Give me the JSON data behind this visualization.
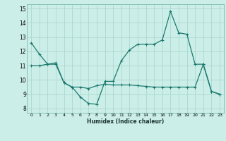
{
  "xlabel": "Humidex (Indice chaleur)",
  "bg_color": "#cceee8",
  "line_color": "#1a7a6e",
  "grid_color": "#aad8d0",
  "x_values": [
    0,
    1,
    2,
    3,
    4,
    5,
    6,
    7,
    8,
    9,
    10,
    11,
    12,
    13,
    14,
    15,
    16,
    17,
    18,
    19,
    20,
    21,
    22,
    23
  ],
  "line1": [
    12.6,
    11.8,
    11.1,
    11.2,
    9.8,
    9.5,
    8.8,
    8.35,
    8.3,
    9.9,
    9.9,
    11.35,
    12.1,
    12.5,
    12.5,
    12.5,
    12.8,
    14.8,
    13.3,
    13.2,
    11.1,
    11.1,
    9.2,
    9.0
  ],
  "line2": [
    11.0,
    11.0,
    11.1,
    11.1,
    9.8,
    9.5,
    9.5,
    9.4,
    9.6,
    9.7,
    9.65,
    9.65,
    9.65,
    9.6,
    9.55,
    9.5,
    9.5,
    9.5,
    9.5,
    9.5,
    9.5,
    11.1,
    9.2,
    9.0
  ],
  "ylim": [
    7.7,
    15.3
  ],
  "xlim": [
    -0.5,
    23.5
  ],
  "yticks": [
    8,
    9,
    10,
    11,
    12,
    13,
    14,
    15
  ],
  "xticks": [
    0,
    1,
    2,
    3,
    4,
    5,
    6,
    7,
    8,
    9,
    10,
    11,
    12,
    13,
    14,
    15,
    16,
    17,
    18,
    19,
    20,
    21,
    22,
    23
  ]
}
